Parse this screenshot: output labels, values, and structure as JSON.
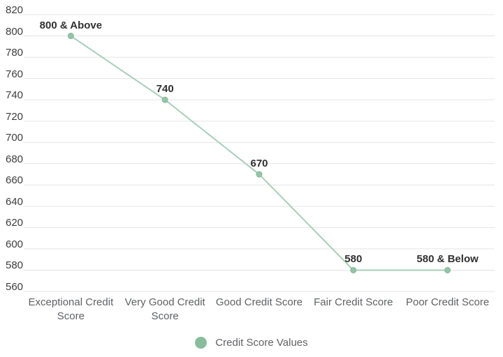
{
  "chart_data": {
    "type": "line",
    "title": "",
    "xlabel": "",
    "ylabel": "",
    "categories": [
      "Exceptional Credit Score",
      "Very Good Credit Score",
      "Good Credit Score",
      "Fair Credit Score",
      "Poor Credit Score"
    ],
    "series": [
      {
        "name": "Credit Score Values",
        "values": [
          800,
          740,
          670,
          580,
          580
        ],
        "point_labels": [
          "800 & Above",
          "740",
          "670",
          "580",
          "580 & Below"
        ]
      }
    ],
    "ylim": [
      560,
      820
    ],
    "ytick_step": 20,
    "yticks": [
      820,
      800,
      780,
      760,
      740,
      720,
      700,
      680,
      660,
      640,
      620,
      600,
      580,
      560
    ],
    "grid": true,
    "legend_position": "bottom",
    "legend_label": "Credit Score Values",
    "colors": {
      "line": "#a9ceba",
      "marker_fill": "#95c4a7",
      "marker_stroke": "#82b696",
      "legend_dot": "#88bd9b",
      "gridline": "#e4e4e4",
      "y_label_text": "#3d3d3d",
      "x_label_text": "#5f6164",
      "data_label_text": "#303030",
      "legend_text": "#5f6164",
      "background": "#ffffff"
    }
  }
}
